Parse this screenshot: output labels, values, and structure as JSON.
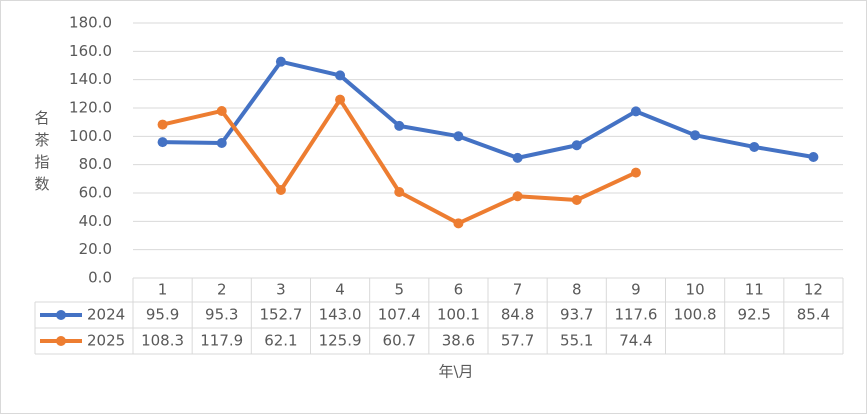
{
  "chart_data": {
    "type": "line",
    "y_label": "名茶指数",
    "x_label": "年\\月",
    "categories": [
      "1",
      "2",
      "3",
      "4",
      "5",
      "6",
      "7",
      "8",
      "9",
      "10",
      "11",
      "12"
    ],
    "series": [
      {
        "name": "2024",
        "color": "#4472c4",
        "values": [
          95.9,
          95.3,
          152.7,
          143.0,
          107.4,
          100.1,
          84.8,
          93.7,
          117.6,
          100.8,
          92.5,
          85.4
        ],
        "value_labels": [
          "95.9",
          "95.3",
          "152.7",
          "143.0",
          "107.4",
          "100.1",
          "84.8",
          "93.7",
          "117.6",
          "100.8",
          "92.5",
          "85.4"
        ]
      },
      {
        "name": "2025",
        "color": "#ed7d31",
        "values": [
          108.3,
          117.9,
          62.1,
          125.9,
          60.7,
          38.6,
          57.7,
          55.1,
          74.4,
          null,
          null,
          null
        ],
        "value_labels": [
          "108.3",
          "117.9",
          "62.1",
          "125.9",
          "60.7",
          "38.6",
          "57.7",
          "55.1",
          "74.4",
          null,
          null,
          null
        ]
      }
    ],
    "ylim": [
      0,
      180
    ],
    "yticks": [
      {
        "value": 0,
        "label": "0.0"
      },
      {
        "value": 20,
        "label": "20.0"
      },
      {
        "value": 40,
        "label": "40.0"
      },
      {
        "value": 60,
        "label": "60.0"
      },
      {
        "value": 80,
        "label": "80.0"
      },
      {
        "value": 100,
        "label": "100.0"
      },
      {
        "value": 120,
        "label": "120.0"
      },
      {
        "value": 140,
        "label": "140.0"
      },
      {
        "value": 160,
        "label": "160.0"
      },
      {
        "value": 180,
        "label": "180.0"
      }
    ],
    "grid": true
  }
}
